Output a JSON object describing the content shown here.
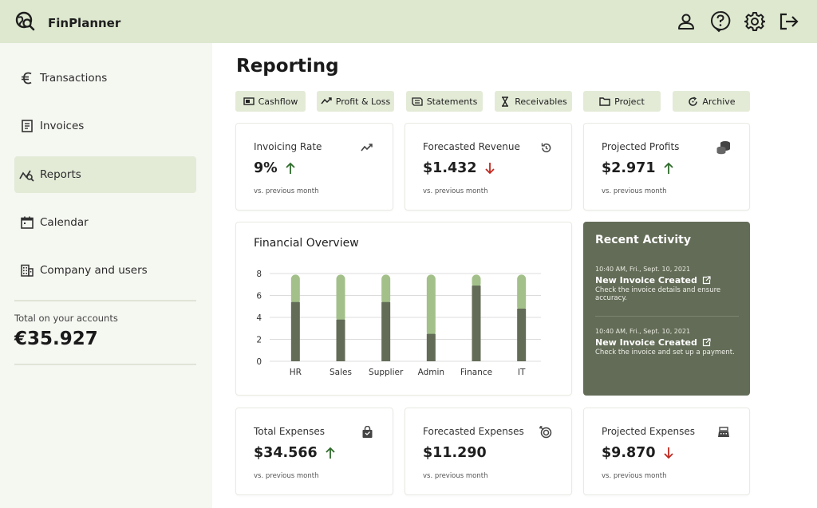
{
  "app": {
    "name": "FinPlanner"
  },
  "topbar": {
    "icons": [
      "user-icon",
      "help-icon",
      "settings-icon",
      "logout-icon"
    ]
  },
  "sidebar": {
    "items": [
      {
        "label": "Transactions",
        "icon": "euro-icon"
      },
      {
        "label": "Invoices",
        "icon": "invoice-icon"
      },
      {
        "label": "Reports",
        "icon": "reports-icon",
        "active": true
      },
      {
        "label": "Calendar",
        "icon": "calendar-icon"
      },
      {
        "label": "Company and users",
        "icon": "building-icon"
      }
    ],
    "total_label": "Total on your accounts",
    "total_value": "€35.927"
  },
  "page": {
    "title": "Reporting"
  },
  "tabs": [
    {
      "label": "Cashflow",
      "icon": "cash-icon"
    },
    {
      "label": "Profit & Loss",
      "icon": "trend-icon"
    },
    {
      "label": "Statements",
      "icon": "statement-icon"
    },
    {
      "label": "Receivables",
      "icon": "hourglass-icon"
    },
    {
      "label": "Project",
      "icon": "folder-icon"
    },
    {
      "label": "Archive",
      "icon": "archive-icon"
    }
  ],
  "kpis": [
    {
      "title": "Invoicing Rate",
      "value": "9%",
      "trend": "up",
      "sub": "vs. previous month",
      "icon": "trending-up-icon"
    },
    {
      "title": "Forecasted Revenue",
      "value": "$1.432",
      "trend": "down",
      "sub": "vs. previous month",
      "icon": "history-icon"
    },
    {
      "title": "Projected Profits",
      "value": "$2.971",
      "trend": "up",
      "sub": "vs. previous month",
      "icon": "coins-icon"
    },
    {
      "title": "Total Expenses",
      "value": "$34.566",
      "trend": "up",
      "sub": "vs. previous month",
      "icon": "bag-icon"
    },
    {
      "title": "Forecasted Expenses",
      "value": "$11.290",
      "trend": "none",
      "sub": "vs. previous month",
      "icon": "target-icon"
    },
    {
      "title": "Projected Expenses",
      "value": "$9.870",
      "trend": "down",
      "sub": "vs. previous month",
      "icon": "register-icon"
    }
  ],
  "colors": {
    "up": "#2e6b2a",
    "down": "#c0281f",
    "bar_dark": "#636c57",
    "bar_light": "#a3c08a",
    "topbar": "#dde8cf",
    "activity_bg": "#636c57"
  },
  "chart_data": {
    "type": "bar",
    "title": "Financial Overview",
    "stacked": true,
    "categories": [
      "HR",
      "Sales",
      "Supplier",
      "Admin",
      "Finance",
      "IT"
    ],
    "series": [
      {
        "values": [
          5.4,
          3.8,
          5.4,
          2.5,
          6.9,
          4.8
        ]
      },
      {
        "values": [
          2.5,
          4.1,
          2.5,
          5.4,
          1.0,
          3.1
        ]
      }
    ],
    "yticks": [
      0,
      2,
      4,
      6,
      8
    ],
    "ylim": [
      0,
      8
    ],
    "grid": true
  },
  "activity": {
    "title": "Recent Activity",
    "items": [
      {
        "time": "10:40 AM, Fri., Sept. 10, 2021",
        "title": "New Invoice Created",
        "desc": "Check the invoice details and ensure accuracy."
      },
      {
        "time": "10:40 AM, Fri., Sept. 10, 2021",
        "title": "New Invoice Created",
        "desc": "Check the invoice and set up a payment."
      }
    ]
  }
}
